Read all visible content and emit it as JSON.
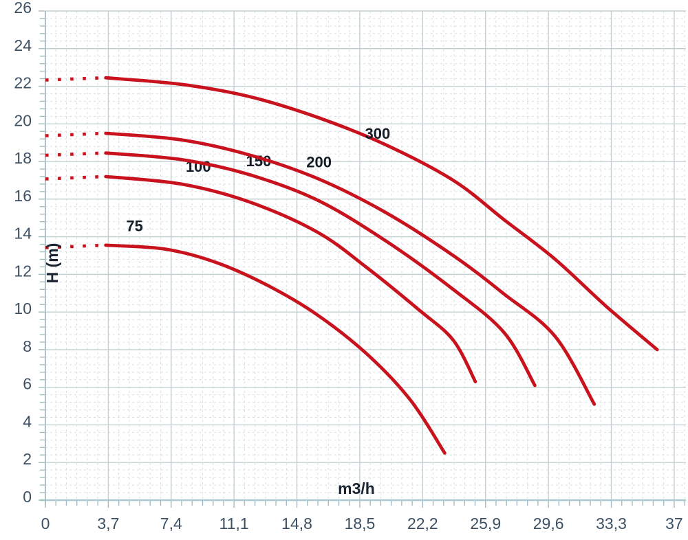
{
  "chart_data": {
    "type": "line",
    "title": "",
    "xlabel": "m3/h",
    "ylabel": "H (m)",
    "x_axis": {
      "tick_values": [
        0,
        3.7,
        7.4,
        11.1,
        14.8,
        18.5,
        22.2,
        25.9,
        29.6,
        33.3,
        37
      ],
      "tick_labels": [
        "0",
        "3,7",
        "7,4",
        "11,1",
        "14,8",
        "18,5",
        "22,2",
        "25,9",
        "29,6",
        "33,3",
        "37"
      ],
      "range": [
        0,
        38.6
      ],
      "minor_divisions_per_major": 6
    },
    "y_axis": {
      "tick_values": [
        0,
        2,
        4,
        6,
        8,
        10,
        12,
        14,
        16,
        18,
        20,
        22,
        24,
        26
      ],
      "tick_labels": [
        "0",
        "2",
        "4",
        "6",
        "8",
        "10",
        "12",
        "14",
        "16",
        "18",
        "20",
        "22",
        "24",
        "26"
      ],
      "range": [
        0,
        26
      ],
      "minor_divisions_per_major": 5
    },
    "grid": {
      "major": "solid",
      "minor": "dashed"
    },
    "legend": "inline curve labels",
    "series": [
      {
        "name": "75",
        "label": "75",
        "label_pos": {
          "q": 5.25,
          "h": 14.3
        },
        "dotted_lead": {
          "q": [
            0,
            3.45
          ],
          "h": [
            13.42,
            13.55
          ]
        },
        "q": [
          3.55,
          7,
          10,
          13,
          16,
          19,
          21.5,
          23.5
        ],
        "h": [
          13.55,
          13.35,
          12.65,
          11.45,
          9.85,
          7.7,
          5.3,
          2.5
        ]
      },
      {
        "name": "100",
        "label": "100",
        "label_pos": {
          "q": 9.0,
          "h": 17.45
        },
        "dotted_lead": {
          "q": [
            0,
            3.45
          ],
          "h": [
            17.07,
            17.2
          ]
        },
        "q": [
          3.55,
          8,
          12,
          16,
          19,
          22,
          24,
          25.3
        ],
        "h": [
          17.2,
          16.8,
          15.85,
          14.25,
          12.3,
          10.1,
          8.5,
          6.3
        ]
      },
      {
        "name": "150",
        "label": "150",
        "label_pos": {
          "q": 12.55,
          "h": 17.75
        },
        "dotted_lead": {
          "q": [
            0,
            3.45
          ],
          "h": [
            18.33,
            18.45
          ]
        },
        "q": [
          3.55,
          8,
          12,
          16,
          20,
          24,
          27,
          28.8
        ],
        "h": [
          18.45,
          18.1,
          17.3,
          15.95,
          13.8,
          11.2,
          8.9,
          6.1
        ]
      },
      {
        "name": "200",
        "label": "200",
        "label_pos": {
          "q": 16.1,
          "h": 17.7
        },
        "dotted_lead": {
          "q": [
            0,
            3.45
          ],
          "h": [
            19.37,
            19.5
          ]
        },
        "q": [
          3.55,
          8,
          12,
          16,
          20,
          24,
          27,
          30,
          32.3
        ],
        "h": [
          19.5,
          19.15,
          18.35,
          17.1,
          15.3,
          13.0,
          10.95,
          8.7,
          5.1
        ]
      },
      {
        "name": "300",
        "label": "300",
        "label_pos": {
          "q": 19.55,
          "h": 19.2
        },
        "dotted_lead": {
          "q": [
            0,
            3.45
          ],
          "h": [
            22.33,
            22.45
          ]
        },
        "q": [
          3.55,
          8,
          12,
          16,
          20,
          24,
          27,
          30,
          33,
          36
        ],
        "h": [
          22.45,
          22.1,
          21.45,
          20.35,
          18.9,
          17.0,
          14.9,
          12.8,
          10.3,
          8.0
        ]
      }
    ],
    "style": {
      "curve_color": "#c8131f",
      "tick_label_color": "#3d5063",
      "curve_label_color": "#131c27",
      "axis_title_color": "#1a2531",
      "grid_major_color": "#c4cfd2",
      "grid_minor_color": "#d7dfe1",
      "axis_line_color": "#abc9d2",
      "tick_color": "#a3bbc2",
      "background": "#ffffff"
    }
  }
}
